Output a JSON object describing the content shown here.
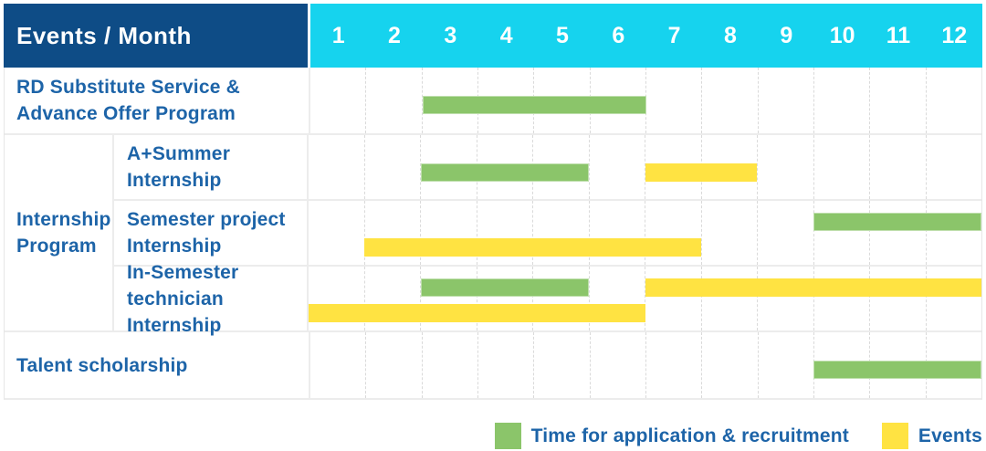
{
  "colors": {
    "header_bg": "#0e4c86",
    "month_header_bg": "#16d3ee",
    "application_bar": "#8bc56a",
    "event_bar": "#ffe342",
    "label_text": "#1d64a8"
  },
  "header": {
    "title": "Events / Month",
    "months": [
      "1",
      "2",
      "3",
      "4",
      "5",
      "6",
      "7",
      "8",
      "9",
      "10",
      "11",
      "12"
    ]
  },
  "body": {
    "rows": [
      {
        "kind": "simple",
        "label_lines": [
          "RD Substitute Service &",
          "Advance Offer Program"
        ],
        "bars": [
          {
            "type": "application",
            "start_month": 3,
            "end_month": 6,
            "line": "mid"
          }
        ]
      },
      {
        "kind": "group",
        "label_lines": [
          "Internship",
          "Program"
        ],
        "subrows": [
          {
            "label_lines": [
              "A+Summer",
              "Internship"
            ],
            "bars": [
              {
                "type": "application",
                "start_month": 3,
                "end_month": 5,
                "line": "mid"
              },
              {
                "type": "event",
                "start_month": 7,
                "end_month": 8,
                "line": "mid"
              }
            ]
          },
          {
            "label_lines": [
              "Semester project",
              "Internship"
            ],
            "bars": [
              {
                "type": "application",
                "start_month": 10,
                "end_month": 12,
                "line": "top"
              },
              {
                "type": "event",
                "start_month": 2,
                "end_month": 7,
                "line": "bottom"
              }
            ]
          },
          {
            "label_lines": [
              "In-Semester",
              "technician Internship"
            ],
            "bars": [
              {
                "type": "application",
                "start_month": 3,
                "end_month": 5,
                "line": "top"
              },
              {
                "type": "event",
                "start_month": 7,
                "end_month": 12,
                "line": "top"
              },
              {
                "type": "event",
                "start_month": 1,
                "end_month": 6,
                "line": "bottom"
              }
            ]
          }
        ]
      },
      {
        "kind": "simple",
        "label_lines": [
          "Talent scholarship"
        ],
        "bars": [
          {
            "type": "application",
            "start_month": 10,
            "end_month": 12,
            "line": "mid"
          }
        ]
      }
    ]
  },
  "legend": {
    "items": [
      {
        "type": "application",
        "label": "Time for application & recruitment"
      },
      {
        "type": "event",
        "label": "Events"
      }
    ]
  },
  "chart_data": {
    "type": "bar",
    "subtype": "gantt-timeline",
    "title": "Events / Month",
    "xlabel": "Month",
    "x_ticks": [
      1,
      2,
      3,
      4,
      5,
      6,
      7,
      8,
      9,
      10,
      11,
      12
    ],
    "x_range": [
      1,
      12
    ],
    "grid": true,
    "legend_position": "bottom-right",
    "legend_entries": [
      "Time for application & recruitment",
      "Events"
    ],
    "tasks": [
      {
        "row": "RD Substitute Service & Advance Offer Program",
        "group": null,
        "segments": [
          {
            "category": "Time for application & recruitment",
            "start_month": 3,
            "end_month": 6
          }
        ]
      },
      {
        "row": "A+Summer Internship",
        "group": "Internship Program",
        "segments": [
          {
            "category": "Time for application & recruitment",
            "start_month": 3,
            "end_month": 5
          },
          {
            "category": "Events",
            "start_month": 7,
            "end_month": 8
          }
        ]
      },
      {
        "row": "Semester project Internship",
        "group": "Internship Program",
        "segments": [
          {
            "category": "Time for application & recruitment",
            "start_month": 10,
            "end_month": 12
          },
          {
            "category": "Events",
            "start_month": 2,
            "end_month": 7
          }
        ]
      },
      {
        "row": "In-Semester technician Internship",
        "group": "Internship Program",
        "segments": [
          {
            "category": "Time for application & recruitment",
            "start_month": 3,
            "end_month": 5
          },
          {
            "category": "Events",
            "start_month": 7,
            "end_month": 12
          },
          {
            "category": "Events",
            "start_month": 1,
            "end_month": 6
          }
        ]
      },
      {
        "row": "Talent scholarship",
        "group": null,
        "segments": [
          {
            "category": "Time for application & recruitment",
            "start_month": 10,
            "end_month": 12
          }
        ]
      }
    ]
  }
}
